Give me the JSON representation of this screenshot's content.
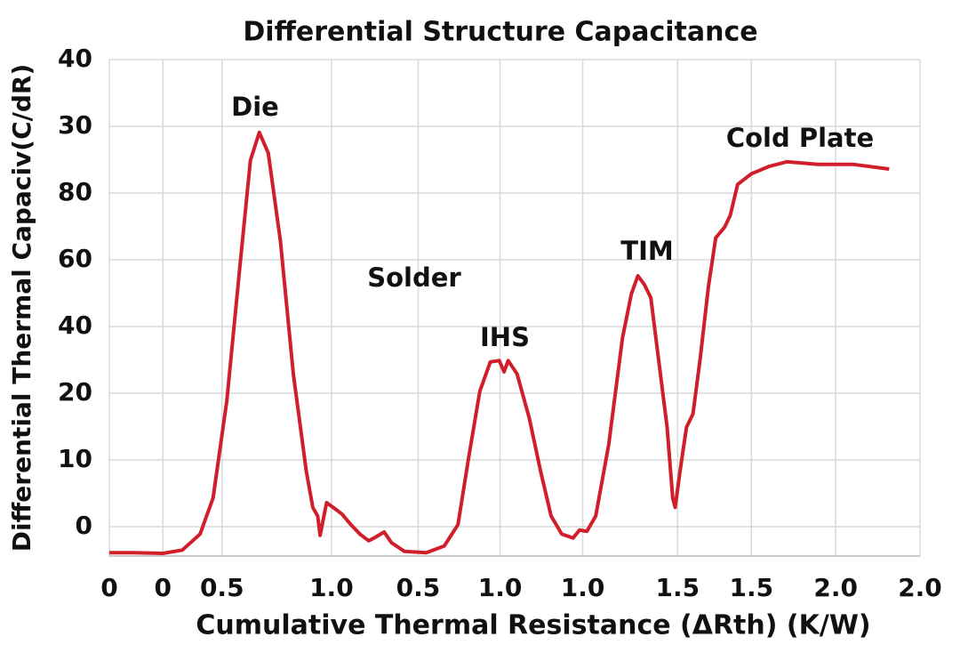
{
  "chart_data": {
    "type": "line",
    "title": "Differential Structure Capacitance",
    "x_label": "Cumulative Thermal Resistance (ΔRth) (K/W)",
    "y_label": "Differential Thermal Capaciv(C/dR)",
    "annotations": [
      "Die",
      "Solder",
      "IHS",
      "TIM",
      "Cold Plate"
    ],
    "xlim": [
      0,
      10
    ],
    "ylim": [
      -4.4,
      70
    ],
    "xticks": [
      0,
      {
        "value": 0.66,
        "label": "0"
      },
      {
        "value": 1.39,
        "label": "0.5"
      },
      {
        "value": 2.74,
        "label": "1.0"
      },
      {
        "value": 3.81,
        "label": "0.5"
      },
      {
        "value": 4.82,
        "label": "1.0"
      },
      {
        "value": 5.84,
        "label": "1.0"
      },
      {
        "value": 7.01,
        "label": "1.5"
      },
      {
        "value": 7.92,
        "label": "1.5"
      },
      {
        "value": 8.96,
        "label": "2.0"
      },
      {
        "value": 10,
        "label": "2.0"
      }
    ],
    "yticks": [
      0,
      10,
      20,
      {
        "value": 30,
        "label": "40"
      },
      {
        "value": 40,
        "label": "60"
      },
      {
        "value": 50,
        "label": "80"
      },
      {
        "value": 60,
        "label": "30"
      },
      {
        "value": 70,
        "label": "40"
      }
    ],
    "grid": true,
    "x": [
      0,
      0.3,
      0.66,
      0.9,
      1.12,
      1.28,
      1.45,
      1.61,
      1.74,
      1.85,
      1.96,
      2.11,
      2.27,
      2.43,
      2.51,
      2.57,
      2.6,
      2.68,
      2.76,
      2.87,
      2.98,
      3.09,
      3.2,
      3.28,
      3.39,
      3.48,
      3.64,
      3.91,
      4.13,
      4.3,
      4.44,
      4.57,
      4.7,
      4.81,
      4.87,
      4.92,
      5.03,
      5.18,
      5.32,
      5.45,
      5.58,
      5.72,
      5.8,
      5.89,
      6.0,
      6.16,
      6.33,
      6.44,
      6.52,
      6.6,
      6.68,
      6.77,
      6.88,
      6.95,
      6.98,
      7.04,
      7.12,
      7.2,
      7.29,
      7.39,
      7.48,
      7.59,
      7.66,
      7.75,
      7.92,
      8.14,
      8.36,
      8.74,
      9.18,
      9.62
    ],
    "series": [
      {
        "color": "#d01f2a",
        "values": [
          -3.9,
          -3.9,
          -4.0,
          -3.5,
          -1.1,
          4.3,
          18.9,
          38.9,
          54.9,
          59.1,
          56.0,
          42.9,
          22.9,
          8.3,
          2.9,
          1.6,
          -1.3,
          3.6,
          2.9,
          1.9,
          0.3,
          -1.1,
          -2.1,
          -1.6,
          -0.8,
          -2.4,
          -3.7,
          -3.9,
          -2.9,
          0.3,
          10.9,
          20.3,
          24.7,
          24.9,
          23.2,
          24.9,
          22.9,
          16.3,
          8.3,
          1.6,
          -1.1,
          -1.7,
          -0.5,
          -0.7,
          1.6,
          12.3,
          28.3,
          34.9,
          37.6,
          36.3,
          34.3,
          25.6,
          14.9,
          4.3,
          2.9,
          8.3,
          14.9,
          16.9,
          25.3,
          36.0,
          43.3,
          44.9,
          46.7,
          51.3,
          52.9,
          54.0,
          54.7,
          54.3,
          54.3,
          53.6
        ]
      }
    ]
  }
}
